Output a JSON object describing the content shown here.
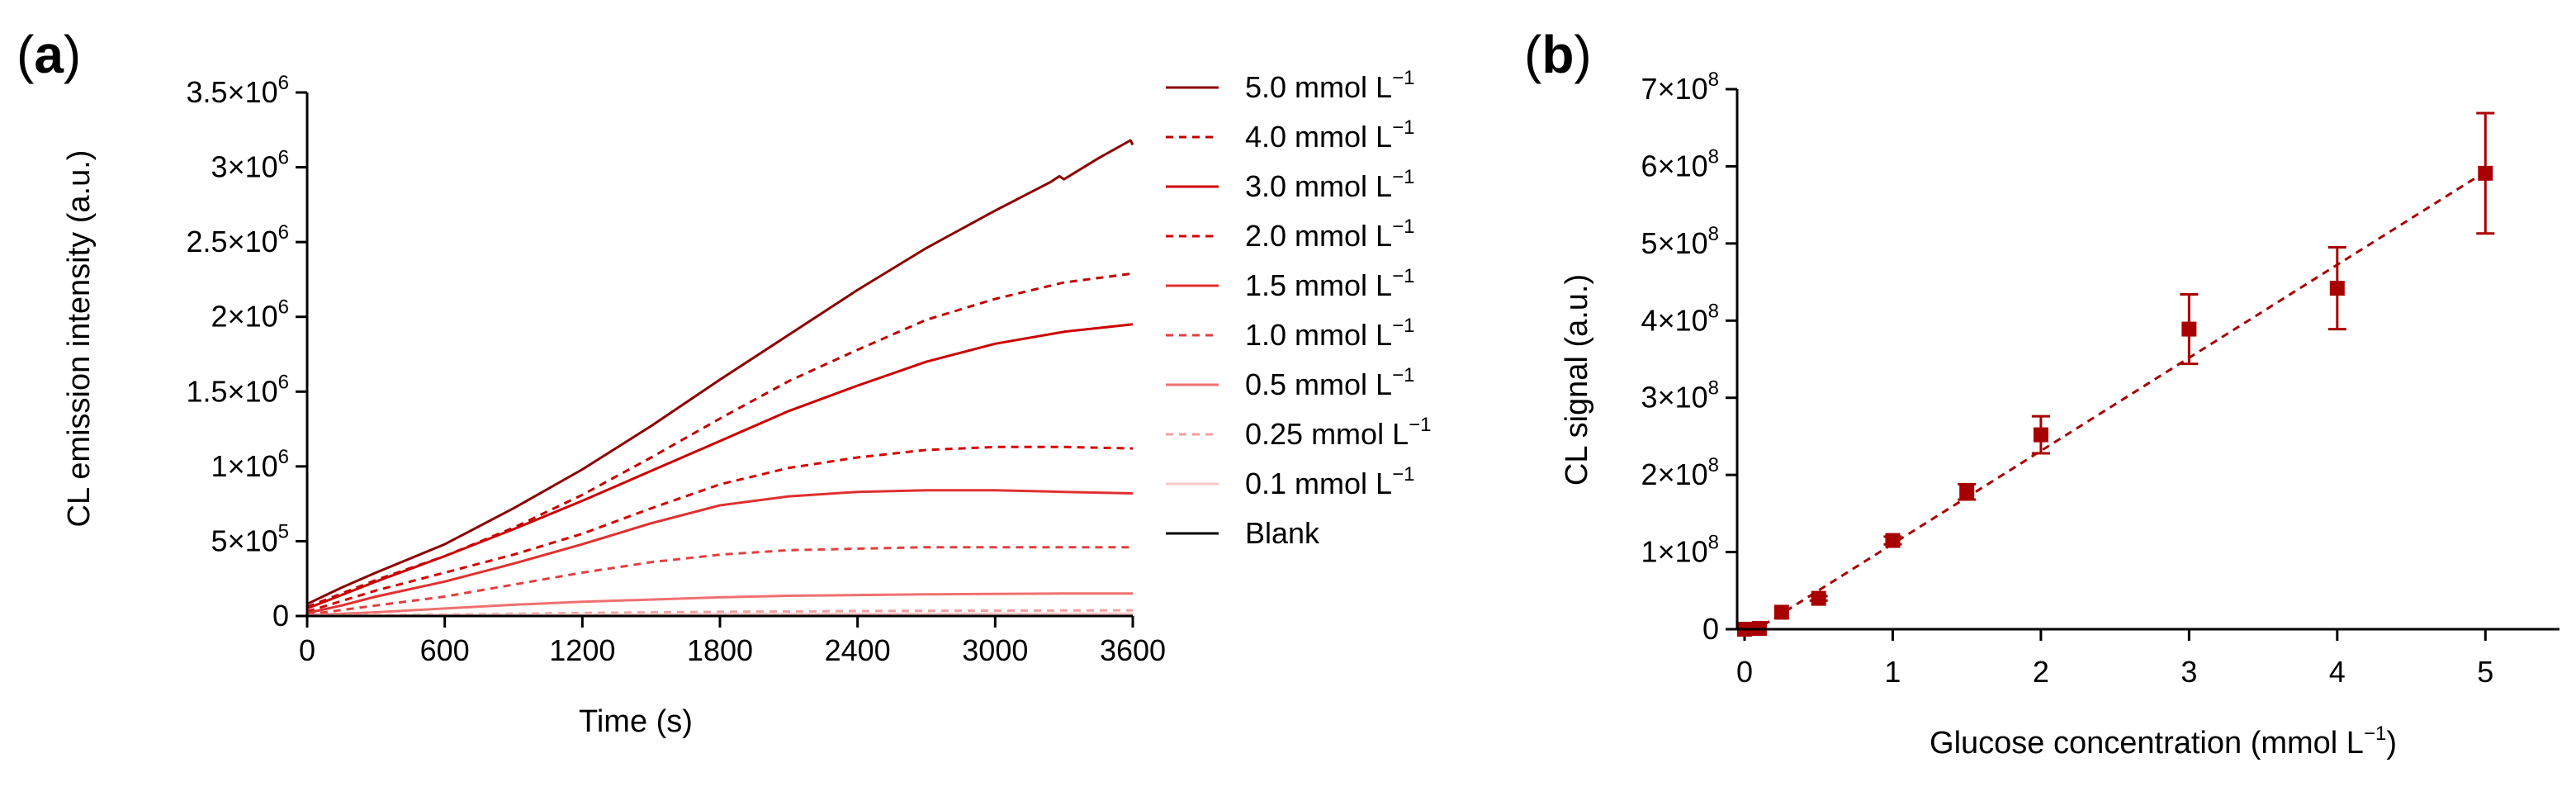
{
  "chart_data": [
    {
      "panel": "a",
      "panel_letter": "a",
      "type": "line",
      "xlabel": "Time (s)",
      "ylabel": "CL emission intensity (a.u.)",
      "xlim": [
        0,
        3600
      ],
      "ylim": [
        0,
        3500000
      ],
      "x_ticks": [
        {
          "value": 0,
          "label": "0"
        },
        {
          "value": 600,
          "label": "600"
        },
        {
          "value": 1200,
          "label": "1200"
        },
        {
          "value": 1800,
          "label": "1800"
        },
        {
          "value": 2400,
          "label": "2400"
        },
        {
          "value": 3000,
          "label": "3000"
        },
        {
          "value": 3600,
          "label": "3600"
        }
      ],
      "y_ticks": [
        {
          "value": 0,
          "base": "0",
          "exp": ""
        },
        {
          "value": 500000,
          "base": "5×10",
          "exp": "5"
        },
        {
          "value": 1000000,
          "base": "1×10",
          "exp": "6"
        },
        {
          "value": 1500000,
          "base": "1.5×10",
          "exp": "6"
        },
        {
          "value": 2000000,
          "base": "2×10",
          "exp": "6"
        },
        {
          "value": 2500000,
          "base": "2.5×10",
          "exp": "6"
        },
        {
          "value": 3000000,
          "base": "3×10",
          "exp": "6"
        },
        {
          "value": 3500000,
          "base": "3.5×10",
          "exp": "6"
        }
      ],
      "legend_position": "right",
      "series": [
        {
          "name": "5.0 mmol L",
          "unit_exp": "−1",
          "color": "#8b0000",
          "dash": "solid",
          "x": [
            0,
            150,
            300,
            600,
            900,
            1200,
            1500,
            1800,
            2100,
            2400,
            2700,
            3000,
            3240,
            3280,
            3300,
            3450,
            3590,
            3600
          ],
          "y": [
            80000,
            190000,
            290000,
            480000,
            720000,
            980000,
            1270000,
            1580000,
            1880000,
            2180000,
            2460000,
            2710000,
            2900000,
            2940000,
            2920000,
            3060000,
            3180000,
            3150000
          ]
        },
        {
          "name": "4.0 mmol L",
          "unit_exp": "−1",
          "color": "#c00000",
          "dash": "dashed",
          "x": [
            0,
            150,
            300,
            600,
            900,
            1200,
            1500,
            1800,
            2100,
            2400,
            2700,
            3000,
            3300,
            3600
          ],
          "y": [
            60000,
            150000,
            240000,
            400000,
            590000,
            810000,
            1060000,
            1320000,
            1570000,
            1780000,
            1980000,
            2120000,
            2230000,
            2290000
          ]
        },
        {
          "name": "3.0 mmol L",
          "unit_exp": "−1",
          "color": "#cc0000",
          "dash": "solid",
          "x": [
            0,
            150,
            300,
            600,
            900,
            1200,
            1500,
            1800,
            2100,
            2400,
            2700,
            3000,
            3300,
            3600
          ],
          "y": [
            50000,
            140000,
            230000,
            400000,
            580000,
            770000,
            970000,
            1170000,
            1370000,
            1540000,
            1700000,
            1820000,
            1900000,
            1950000
          ]
        },
        {
          "name": "2.0 mmol L",
          "unit_exp": "−1",
          "color": "#d40000",
          "dash": "dashed",
          "x": [
            0,
            150,
            300,
            600,
            900,
            1200,
            1500,
            1800,
            2100,
            2400,
            2700,
            3000,
            3300,
            3600
          ],
          "y": [
            30000,
            100000,
            170000,
            290000,
            410000,
            550000,
            720000,
            880000,
            990000,
            1060000,
            1110000,
            1130000,
            1130000,
            1120000
          ]
        },
        {
          "name": "1.5 mmol L",
          "unit_exp": "−1",
          "color": "#e03030",
          "dash": "solid",
          "x": [
            0,
            150,
            300,
            600,
            900,
            1200,
            1500,
            1800,
            2100,
            2400,
            2700,
            3000,
            3300,
            3600
          ],
          "y": [
            20000,
            70000,
            130000,
            230000,
            350000,
            480000,
            620000,
            740000,
            800000,
            830000,
            840000,
            840000,
            830000,
            820000
          ]
        },
        {
          "name": "1.0 mmol L",
          "unit_exp": "−1",
          "color": "#e04040",
          "dash": "dashed",
          "x": [
            0,
            150,
            300,
            600,
            900,
            1200,
            1500,
            1800,
            2100,
            2400,
            2700,
            3000,
            3300,
            3600
          ],
          "y": [
            10000,
            40000,
            70000,
            130000,
            210000,
            290000,
            360000,
            410000,
            440000,
            450000,
            460000,
            460000,
            460000,
            460000
          ]
        },
        {
          "name": "0.5 mmol L",
          "unit_exp": "−1",
          "color": "#f07070",
          "dash": "solid",
          "x": [
            0,
            300,
            600,
            900,
            1200,
            1500,
            1800,
            2100,
            2400,
            2700,
            3000,
            3300,
            3600
          ],
          "y": [
            5000,
            25000,
            50000,
            75000,
            95000,
            110000,
            125000,
            135000,
            140000,
            145000,
            148000,
            150000,
            150000
          ]
        },
        {
          "name": "0.25 mmol L",
          "unit_exp": "−1",
          "color": "#f0a0a0",
          "dash": "dashed",
          "x": [
            0,
            600,
            1200,
            1800,
            2400,
            3000,
            3600
          ],
          "y": [
            2000,
            10000,
            20000,
            28000,
            33000,
            36000,
            38000
          ]
        },
        {
          "name": "0.1 mmol L",
          "unit_exp": "−1",
          "color": "#f8c8c8",
          "dash": "solid",
          "x": [
            0,
            600,
            1200,
            1800,
            2400,
            3000,
            3600
          ],
          "y": [
            1000,
            5000,
            9000,
            12000,
            14000,
            15000,
            16000
          ]
        },
        {
          "name": "Blank",
          "unit_exp": "",
          "color": "#000000",
          "dash": "solid",
          "x": [
            0,
            3600
          ],
          "y": [
            0,
            0
          ]
        }
      ]
    },
    {
      "panel": "b",
      "panel_letter": "b",
      "type": "scatter",
      "xlabel": "Glucose concentration (mmol L",
      "xlabel_exp": "−1",
      "xlabel_close": ")",
      "ylabel": "CL signal (a.u.)",
      "xlim": [
        -0.05,
        5.5
      ],
      "ylim": [
        0,
        700000000
      ],
      "x_ticks": [
        {
          "value": 0,
          "label": "0"
        },
        {
          "value": 1,
          "label": "1"
        },
        {
          "value": 2,
          "label": "2"
        },
        {
          "value": 3,
          "label": "3"
        },
        {
          "value": 4,
          "label": "4"
        },
        {
          "value": 5,
          "label": "5"
        }
      ],
      "y_ticks": [
        {
          "value": 0,
          "base": "0",
          "exp": ""
        },
        {
          "value": 100000000,
          "base": "1×10",
          "exp": "8"
        },
        {
          "value": 200000000,
          "base": "2×10",
          "exp": "8"
        },
        {
          "value": 300000000,
          "base": "3×10",
          "exp": "8"
        },
        {
          "value": 400000000,
          "base": "4×10",
          "exp": "8"
        },
        {
          "value": 500000000,
          "base": "5×10",
          "exp": "8"
        },
        {
          "value": 600000000,
          "base": "6×10",
          "exp": "8"
        },
        {
          "value": 700000000,
          "base": "7×10",
          "exp": "8"
        }
      ],
      "marker_color": "#a80000",
      "points": [
        {
          "x": 0,
          "y": 0,
          "err": 0
        },
        {
          "x": 0.1,
          "y": 1000000,
          "err": 0
        },
        {
          "x": 0.25,
          "y": 22000000,
          "err": 0
        },
        {
          "x": 0.5,
          "y": 40000000,
          "err": 3000000
        },
        {
          "x": 1.0,
          "y": 115000000,
          "err": 5000000
        },
        {
          "x": 1.5,
          "y": 178000000,
          "err": 10000000
        },
        {
          "x": 2.0,
          "y": 252000000,
          "err": 24000000
        },
        {
          "x": 3.0,
          "y": 389000000,
          "err": 45000000
        },
        {
          "x": 4.0,
          "y": 442000000,
          "err": 53000000
        },
        {
          "x": 5.0,
          "y": 591000000,
          "err": 78000000
        }
      ],
      "fit": {
        "x": [
          0.05,
          5.0
        ],
        "y": [
          -4000000,
          593000000
        ],
        "dash": "dashed",
        "color": "#a80000"
      }
    }
  ]
}
